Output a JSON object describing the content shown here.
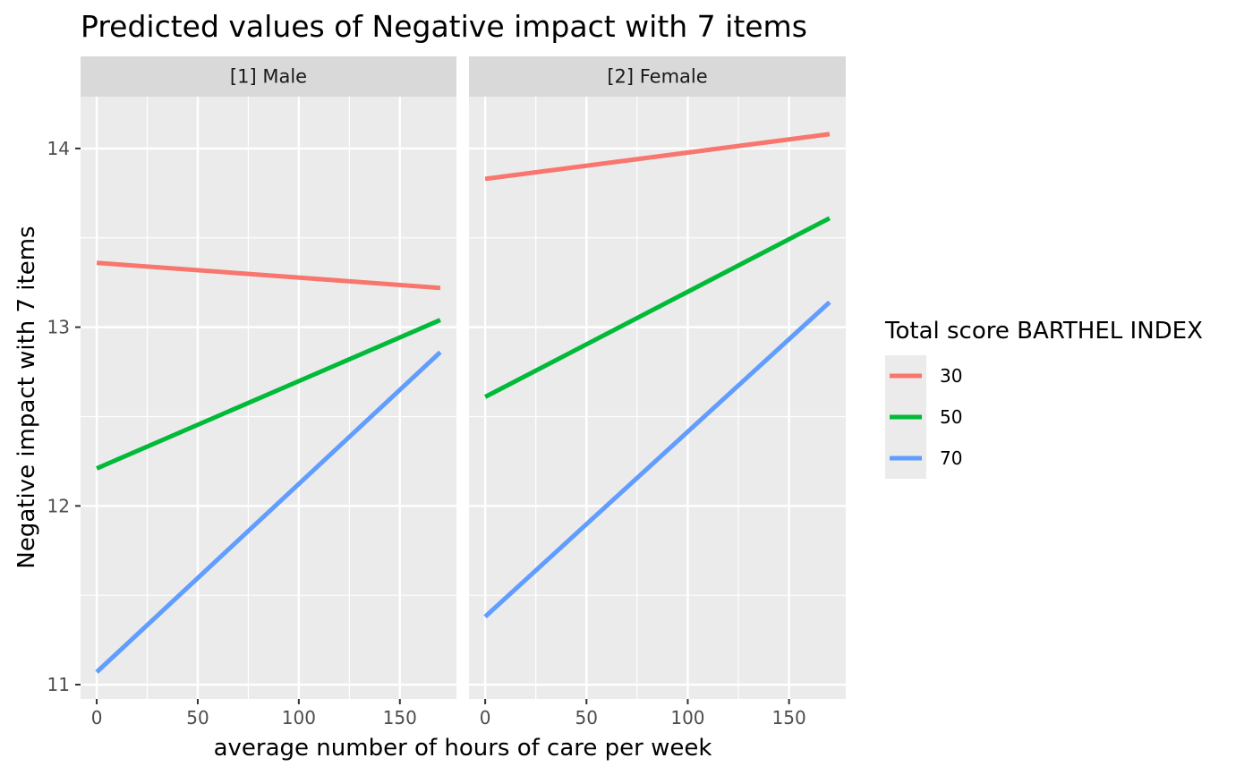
{
  "chart_data": {
    "type": "line",
    "title": "Predicted values of Negative impact with 7 items",
    "xlabel": "average number of hours of care per week",
    "ylabel": "Negative impact with 7 items",
    "xlim": [
      -8,
      178
    ],
    "ylim": [
      10.92,
      14.29
    ],
    "x_ticks": [
      0,
      50,
      100,
      150
    ],
    "y_ticks": [
      11,
      12,
      13,
      14
    ],
    "grid": true,
    "legend": {
      "title": "Total score BARTHEL INDEX",
      "position": "right",
      "entries": [
        "30",
        "50",
        "70"
      ]
    },
    "colors": {
      "30": "#F8766D",
      "50": "#00BA38",
      "70": "#619CFF"
    },
    "panels": [
      {
        "label": "[1] Male",
        "series": [
          {
            "name": "30",
            "x": [
              0,
              170
            ],
            "y": [
              13.36,
              13.22
            ]
          },
          {
            "name": "50",
            "x": [
              0,
              170
            ],
            "y": [
              12.21,
              13.04
            ]
          },
          {
            "name": "70",
            "x": [
              0,
              170
            ],
            "y": [
              11.07,
              12.86
            ]
          }
        ]
      },
      {
        "label": "[2] Female",
        "series": [
          {
            "name": "30",
            "x": [
              0,
              170
            ],
            "y": [
              13.83,
              14.08
            ]
          },
          {
            "name": "50",
            "x": [
              0,
              170
            ],
            "y": [
              12.61,
              13.61
            ]
          },
          {
            "name": "70",
            "x": [
              0,
              170
            ],
            "y": [
              11.38,
              13.14
            ]
          }
        ]
      }
    ]
  }
}
